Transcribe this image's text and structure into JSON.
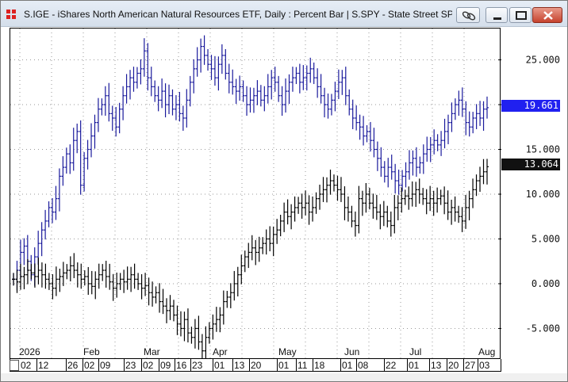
{
  "window": {
    "title": "S.IGE - iShares North American Natural Resources ETF, Daily : Percent Bar   |   S.SPY - State Street SPD...",
    "icon": "grid-app-icon",
    "controls": [
      "link-icon",
      "minimize-icon",
      "maximize-icon",
      "close-icon"
    ]
  },
  "badges": {
    "ige": {
      "value": "19.661",
      "color": "#2020f0"
    },
    "spy": {
      "value": "13.064",
      "color": "#111111"
    }
  },
  "months": [
    "2026",
    "Feb",
    "Mar",
    "Apr",
    "May",
    "Jun",
    "Jul",
    "Aug"
  ],
  "days": [
    "02",
    "12",
    "26",
    "02",
    "09",
    "23",
    "02",
    "09",
    "16",
    "23",
    "01",
    "13",
    "20",
    "01",
    "11",
    "18",
    "01",
    "08",
    "22",
    "01",
    "13",
    "20",
    "27",
    "03"
  ],
  "chart_data": {
    "type": "bar",
    "y_axis_unit": "percent",
    "ylim": [
      -8.5,
      28.5
    ],
    "yticks": [
      "25.000",
      "20.000",
      "15.000",
      "10.000",
      "5.000",
      "0.000",
      "-5.000"
    ],
    "ytick_values": [
      25,
      20,
      15,
      10,
      5,
      0,
      -5
    ],
    "grid": "dotted",
    "series": [
      {
        "name": "S.IGE",
        "color": "#1a1a9c",
        "last": 19.661,
        "values": [
          0.5,
          1.5,
          3.5,
          4.2,
          2.5,
          1.0,
          3.0,
          4.5,
          6.0,
          7.0,
          8.5,
          8.0,
          9.5,
          12.0,
          13.0,
          14.5,
          13.5,
          16.0,
          17.0,
          11.0,
          14.0,
          15.0,
          16.5,
          18.0,
          19.5,
          20.0,
          21.0,
          19.0,
          18.5,
          17.5,
          19.5,
          21.0,
          22.0,
          23.0,
          22.5,
          23.5,
          24.0,
          26.0,
          23.0,
          22.0,
          21.0,
          20.5,
          21.5,
          20.0,
          21.0,
          19.5,
          20.0,
          19.0,
          18.5,
          20.5,
          22.5,
          24.0,
          25.0,
          26.5,
          25.5,
          24.5,
          24.0,
          23.0,
          24.5,
          25.5,
          23.5,
          22.5,
          22.0,
          21.5,
          22.0,
          21.0,
          20.0,
          20.5,
          21.0,
          21.5,
          20.5,
          21.0,
          22.0,
          23.0,
          22.5,
          21.0,
          20.0,
          21.5,
          22.5,
          23.0,
          23.5,
          22.5,
          23.0,
          23.5,
          24.0,
          23.0,
          22.0,
          21.0,
          20.0,
          19.5,
          20.5,
          21.5,
          22.5,
          23.0,
          21.0,
          19.5,
          18.5,
          18.0,
          17.5,
          16.5,
          17.0,
          16.0,
          15.0,
          14.0,
          13.0,
          12.0,
          13.0,
          12.5,
          11.5,
          11.0,
          12.0,
          12.5,
          13.5,
          14.0,
          13.0,
          13.5,
          14.5,
          15.0,
          15.5,
          16.0,
          15.5,
          16.0,
          17.0,
          18.0,
          19.0,
          20.0,
          20.5,
          19.5,
          18.0,
          17.5,
          18.5,
          19.0,
          18.5,
          19.5,
          19.661
        ]
      },
      {
        "name": "S.SPY",
        "color": "#000000",
        "last": 13.064,
        "values": [
          0.5,
          0.2,
          0.8,
          1.0,
          1.5,
          1.2,
          0.8,
          1.5,
          1.0,
          0.5,
          0.0,
          -0.5,
          0.5,
          0.8,
          1.2,
          1.5,
          2.0,
          1.5,
          1.0,
          0.5,
          0.8,
          0.0,
          -0.3,
          0.5,
          1.0,
          1.5,
          0.8,
          0.2,
          -0.5,
          0.0,
          0.5,
          0.2,
          0.5,
          1.0,
          0.5,
          0.0,
          -0.5,
          -0.2,
          -1.0,
          -1.5,
          -1.0,
          -2.0,
          -2.5,
          -3.0,
          -2.5,
          -3.5,
          -4.5,
          -5.0,
          -4.0,
          -5.5,
          -6.0,
          -5.0,
          -6.5,
          -7.5,
          -6.0,
          -5.0,
          -4.5,
          -4.0,
          -3.5,
          -2.0,
          -1.5,
          -1.0,
          0.0,
          1.0,
          2.0,
          3.0,
          3.5,
          4.0,
          3.5,
          4.0,
          4.5,
          5.0,
          4.5,
          5.5,
          6.0,
          7.0,
          8.0,
          7.5,
          8.0,
          8.5,
          9.0,
          8.5,
          9.0,
          8.0,
          8.5,
          9.5,
          10.0,
          10.5,
          11.0,
          11.5,
          11.0,
          10.5,
          10.0,
          8.5,
          8.0,
          7.0,
          6.5,
          9.5,
          9.0,
          10.0,
          9.0,
          8.5,
          8.0,
          7.5,
          8.0,
          7.0,
          6.5,
          8.5,
          9.0,
          9.5,
          9.8,
          9.5,
          10.0,
          10.5,
          10.0,
          9.5,
          9.0,
          9.5,
          9.0,
          9.5,
          9.8,
          9.0,
          8.0,
          8.5,
          8.0,
          7.5,
          7.0,
          8.5,
          9.5,
          10.5,
          11.5,
          12.0,
          12.5,
          13.064
        ]
      }
    ]
  }
}
